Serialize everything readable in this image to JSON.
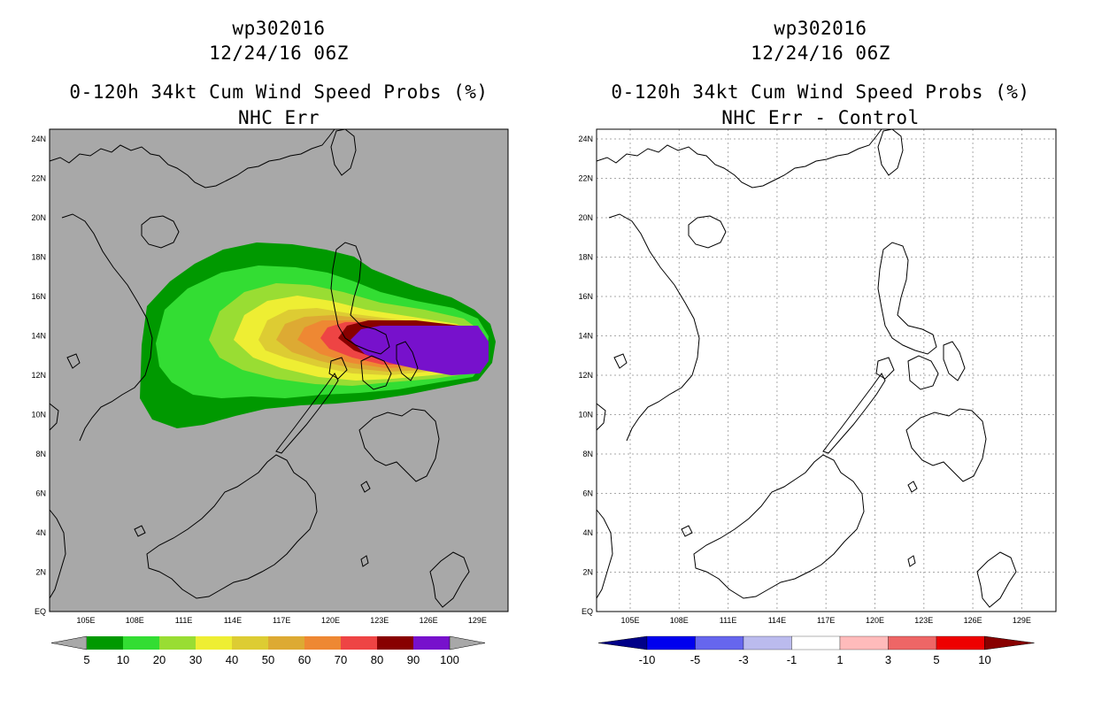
{
  "left_panel": {
    "storm_id": "wp302016",
    "datetime": "12/24/16 06Z",
    "title": "0-120h 34kt Cum Wind Speed Probs (%)",
    "subtitle": "NHC Err",
    "background_color": "#a8a8a8",
    "colorbar": {
      "labels": [
        "5",
        "10",
        "20",
        "30",
        "40",
        "50",
        "60",
        "70",
        "80",
        "90",
        "100"
      ],
      "colors": [
        "#009900",
        "#33dd33",
        "#99dd33",
        "#eeee33",
        "#ddcc33",
        "#ddaa33",
        "#ee8833",
        "#ee4444",
        "#880000",
        "#7711cc"
      ],
      "end_color": "#a8a8a8"
    }
  },
  "right_panel": {
    "storm_id": "wp302016",
    "datetime": "12/24/16 06Z",
    "title": "0-120h 34kt Cum Wind Speed Probs (%)",
    "subtitle": "NHC Err - Control",
    "background_color": "#ffffff",
    "colorbar": {
      "labels": [
        "-10",
        "-5",
        "-3",
        "-1",
        "1",
        "3",
        "5",
        "10"
      ],
      "colors": [
        "#0000ee",
        "#6666ee",
        "#bbbbee",
        "#ffffff",
        "#ffbbbb",
        "#ee6666",
        "#ee0000"
      ],
      "left_end_color": "#000088",
      "right_end_color": "#880000"
    }
  },
  "map": {
    "lat_labels": [
      "EQ",
      "2N",
      "4N",
      "6N",
      "8N",
      "10N",
      "12N",
      "14N",
      "16N",
      "18N",
      "20N",
      "22N",
      "24N"
    ],
    "lon_labels": [
      "105E",
      "108E",
      "111E",
      "114E",
      "117E",
      "120E",
      "123E",
      "126E",
      "129E"
    ]
  }
}
